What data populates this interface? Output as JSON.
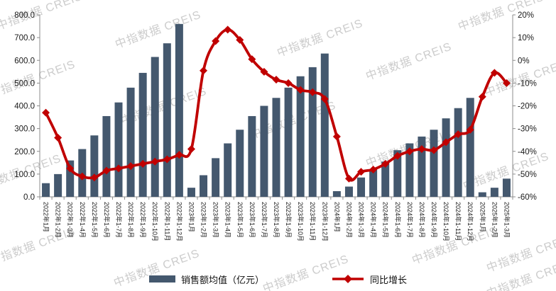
{
  "watermark_text": "中指数据 CREIS",
  "colors": {
    "bar": "#44586E",
    "line": "#C00000",
    "axis_line": "#8C8C8C",
    "tick_label": "#1A1A1A",
    "background": "#FFFFFF",
    "watermark": "#A3A3A3"
  },
  "legend": {
    "bar_label": "销售额均值（亿元）",
    "line_label": "同比增长"
  },
  "left_axis": {
    "tick_labels": [
      "800.0",
      "700.0",
      "600.0",
      "500.0",
      "400.0",
      "300.0",
      "200.0",
      "100.0",
      "0.0"
    ]
  },
  "right_axis": {
    "tick_labels": [
      "20%",
      "10%",
      "0%",
      "-10%",
      "-20%",
      "-30%",
      "-40%",
      "-50%",
      "-60%"
    ]
  },
  "chart_data": {
    "type": "bar+line",
    "title": "",
    "legend_position": "bottom",
    "grid": false,
    "left_ylim": [
      0,
      800
    ],
    "right_ylim": [
      -60,
      20
    ],
    "categories": [
      "2022年1月",
      "2022年1-2月",
      "2022年1-3月",
      "2022年1-4月",
      "2022年1-5月",
      "2022年1-6月",
      "2022年1-7月",
      "2022年1-8月",
      "2022年1-9月",
      "2022年1-10月",
      "2022年1-11月",
      "2022年1-12月",
      "2023年1月",
      "2023年1-2月",
      "2023年1-3月",
      "2023年1-4月",
      "2023年1-5月",
      "2023年1-6月",
      "2023年1-7月",
      "2023年1-8月",
      "2023年1-9月",
      "2023年1-10月",
      "2023年1-11月",
      "2023年1-12月",
      "2024年1月",
      "2024年1-2月",
      "2024年1-3月",
      "2024年1-4月",
      "2024年1-5月",
      "2024年1-6月",
      "2024年1-7月",
      "2024年1-8月",
      "2024年1-9月",
      "2024年1-10月",
      "2024年1-11月",
      "2024年1-12月",
      "2025年1月",
      "2025年1-2月",
      "2025年1-3月"
    ],
    "series": [
      {
        "name": "销售额均值（亿元）",
        "type": "bar",
        "axis": "left",
        "unit": "亿元",
        "values": [
          60,
          100,
          160,
          210,
          270,
          355,
          415,
          480,
          545,
          615,
          675,
          760,
          40,
          95,
          170,
          235,
          295,
          355,
          400,
          435,
          480,
          530,
          570,
          630,
          25,
          45,
          85,
          120,
          155,
          205,
          235,
          265,
          295,
          345,
          390,
          435,
          20,
          40,
          80
        ]
      },
      {
        "name": "同比增长",
        "type": "line",
        "axis": "right",
        "unit": "%",
        "values": [
          -23,
          -34,
          -47.5,
          -51,
          -51.5,
          -48.5,
          -47.5,
          -46.5,
          -45.5,
          -44.5,
          -43.5,
          -41.5,
          -39,
          -4.5,
          8.5,
          13.5,
          9,
          0.5,
          -5,
          -8.5,
          -10,
          -13,
          -14,
          -17,
          -33.5,
          -52,
          -49,
          -48,
          -45.5,
          -42,
          -40,
          -39,
          -39.5,
          -36,
          -32.5,
          -30.5,
          -16,
          -5.5,
          -10
        ]
      }
    ]
  }
}
